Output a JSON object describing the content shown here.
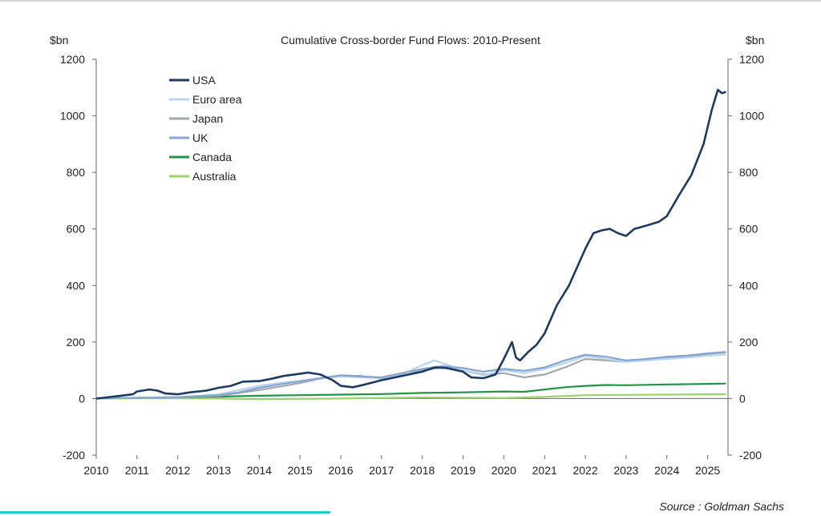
{
  "source": "Source : Goldman Sachs",
  "colors": {
    "USA": "#1f3a60",
    "Euro area": "#b8d4ee",
    "Japan": "#a3a8ae",
    "UK": "#86a5cf",
    "Canada": "#219448",
    "Australia": "#9dd16d"
  },
  "chart_data": {
    "type": "line",
    "title": "Cumulative Cross-border Fund Flows: 2010-Present",
    "y_unit_left": "$bn",
    "y_unit_right": "$bn",
    "xlim": [
      2010,
      2025.5
    ],
    "ylim": [
      -200,
      1200
    ],
    "x_ticks": [
      2010,
      2011,
      2012,
      2013,
      2014,
      2015,
      2016,
      2017,
      2018,
      2019,
      2020,
      2021,
      2022,
      2023,
      2024,
      2025
    ],
    "y_ticks": [
      -200,
      0,
      200,
      400,
      600,
      800,
      1000,
      1200
    ],
    "grid": false,
    "legend_position": "top-left",
    "series": [
      {
        "name": "USA",
        "points": [
          [
            2010,
            0
          ],
          [
            2010.5,
            8
          ],
          [
            2010.9,
            15
          ],
          [
            2011,
            25
          ],
          [
            2011.3,
            32
          ],
          [
            2011.5,
            28
          ],
          [
            2011.7,
            18
          ],
          [
            2012,
            15
          ],
          [
            2012.3,
            22
          ],
          [
            2012.7,
            28
          ],
          [
            2013,
            38
          ],
          [
            2013.3,
            45
          ],
          [
            2013.6,
            60
          ],
          [
            2014,
            62
          ],
          [
            2014.3,
            70
          ],
          [
            2014.6,
            80
          ],
          [
            2015,
            88
          ],
          [
            2015.2,
            92
          ],
          [
            2015.5,
            85
          ],
          [
            2015.8,
            65
          ],
          [
            2016,
            45
          ],
          [
            2016.3,
            40
          ],
          [
            2016.6,
            50
          ],
          [
            2017,
            65
          ],
          [
            2017.5,
            80
          ],
          [
            2018,
            95
          ],
          [
            2018.3,
            110
          ],
          [
            2018.6,
            108
          ],
          [
            2019,
            95
          ],
          [
            2019.2,
            75
          ],
          [
            2019.5,
            72
          ],
          [
            2019.8,
            85
          ],
          [
            2020,
            140
          ],
          [
            2020.1,
            170
          ],
          [
            2020.2,
            200
          ],
          [
            2020.3,
            145
          ],
          [
            2020.4,
            135
          ],
          [
            2020.6,
            165
          ],
          [
            2020.8,
            190
          ],
          [
            2021,
            230
          ],
          [
            2021.3,
            330
          ],
          [
            2021.6,
            400
          ],
          [
            2022,
            530
          ],
          [
            2022.2,
            585
          ],
          [
            2022.4,
            595
          ],
          [
            2022.6,
            600
          ],
          [
            2022.8,
            585
          ],
          [
            2023,
            575
          ],
          [
            2023.2,
            600
          ],
          [
            2023.5,
            612
          ],
          [
            2023.8,
            625
          ],
          [
            2024,
            645
          ],
          [
            2024.3,
            720
          ],
          [
            2024.6,
            790
          ],
          [
            2024.9,
            900
          ],
          [
            2025.1,
            1020
          ],
          [
            2025.25,
            1092
          ],
          [
            2025.35,
            1080
          ],
          [
            2025.45,
            1085
          ]
        ]
      },
      {
        "name": "Euro area",
        "points": [
          [
            2010,
            0
          ],
          [
            2011,
            3
          ],
          [
            2012,
            5
          ],
          [
            2013,
            15
          ],
          [
            2013.5,
            30
          ],
          [
            2014,
            45
          ],
          [
            2014.5,
            55
          ],
          [
            2015,
            62
          ],
          [
            2015.5,
            70
          ],
          [
            2016,
            78
          ],
          [
            2016.5,
            75
          ],
          [
            2017,
            72
          ],
          [
            2017.5,
            85
          ],
          [
            2018,
            118
          ],
          [
            2018.3,
            135
          ],
          [
            2018.6,
            120
          ],
          [
            2019,
            100
          ],
          [
            2019.5,
            82
          ],
          [
            2020,
            100
          ],
          [
            2020.5,
            90
          ],
          [
            2021,
            105
          ],
          [
            2021.5,
            125
          ],
          [
            2022,
            150
          ],
          [
            2022.5,
            140
          ],
          [
            2023,
            130
          ],
          [
            2023.5,
            135
          ],
          [
            2024,
            140
          ],
          [
            2024.5,
            145
          ],
          [
            2025,
            152
          ],
          [
            2025.45,
            155
          ]
        ]
      },
      {
        "name": "Japan",
        "points": [
          [
            2010,
            0
          ],
          [
            2011,
            2
          ],
          [
            2012,
            5
          ],
          [
            2013,
            10
          ],
          [
            2013.5,
            20
          ],
          [
            2014,
            30
          ],
          [
            2014.5,
            42
          ],
          [
            2015,
            55
          ],
          [
            2015.5,
            70
          ],
          [
            2016,
            82
          ],
          [
            2016.5,
            80
          ],
          [
            2017,
            70
          ],
          [
            2017.5,
            80
          ],
          [
            2018,
            100
          ],
          [
            2018.5,
            110
          ],
          [
            2019,
            100
          ],
          [
            2019.5,
            85
          ],
          [
            2020,
            90
          ],
          [
            2020.5,
            75
          ],
          [
            2021,
            85
          ],
          [
            2021.5,
            110
          ],
          [
            2022,
            140
          ],
          [
            2022.5,
            135
          ],
          [
            2023,
            130
          ],
          [
            2023.5,
            140
          ],
          [
            2024,
            145
          ],
          [
            2024.5,
            150
          ],
          [
            2025,
            158
          ],
          [
            2025.45,
            163
          ]
        ]
      },
      {
        "name": "UK",
        "points": [
          [
            2010,
            0
          ],
          [
            2011,
            2
          ],
          [
            2012,
            5
          ],
          [
            2013,
            12
          ],
          [
            2013.5,
            22
          ],
          [
            2014,
            38
          ],
          [
            2014.5,
            50
          ],
          [
            2015,
            62
          ],
          [
            2015.5,
            72
          ],
          [
            2016,
            82
          ],
          [
            2016.5,
            78
          ],
          [
            2017,
            75
          ],
          [
            2017.5,
            90
          ],
          [
            2018,
            105
          ],
          [
            2018.5,
            115
          ],
          [
            2019,
            108
          ],
          [
            2019.5,
            95
          ],
          [
            2020,
            105
          ],
          [
            2020.5,
            98
          ],
          [
            2021,
            110
          ],
          [
            2021.5,
            135
          ],
          [
            2022,
            155
          ],
          [
            2022.5,
            148
          ],
          [
            2023,
            135
          ],
          [
            2023.5,
            140
          ],
          [
            2024,
            148
          ],
          [
            2024.5,
            152
          ],
          [
            2025,
            160
          ],
          [
            2025.45,
            165
          ]
        ]
      },
      {
        "name": "Canada",
        "points": [
          [
            2010,
            0
          ],
          [
            2011,
            3
          ],
          [
            2012,
            5
          ],
          [
            2013,
            7
          ],
          [
            2014,
            10
          ],
          [
            2015,
            12
          ],
          [
            2016,
            14
          ],
          [
            2017,
            16
          ],
          [
            2018,
            20
          ],
          [
            2019,
            22
          ],
          [
            2020,
            25
          ],
          [
            2020.5,
            24
          ],
          [
            2021,
            32
          ],
          [
            2021.5,
            40
          ],
          [
            2022,
            45
          ],
          [
            2022.5,
            48
          ],
          [
            2023,
            47
          ],
          [
            2024,
            50
          ],
          [
            2025,
            52
          ],
          [
            2025.45,
            53
          ]
        ]
      },
      {
        "name": "Australia",
        "points": [
          [
            2010,
            0
          ],
          [
            2011,
            1
          ],
          [
            2012,
            1
          ],
          [
            2013,
            0
          ],
          [
            2014,
            -2
          ],
          [
            2015,
            -1
          ],
          [
            2016,
            0
          ],
          [
            2017,
            2
          ],
          [
            2018,
            4
          ],
          [
            2019,
            3
          ],
          [
            2020,
            2
          ],
          [
            2021,
            6
          ],
          [
            2022,
            12
          ],
          [
            2023,
            13
          ],
          [
            2024,
            14
          ],
          [
            2025,
            15
          ],
          [
            2025.45,
            15
          ]
        ]
      }
    ]
  }
}
